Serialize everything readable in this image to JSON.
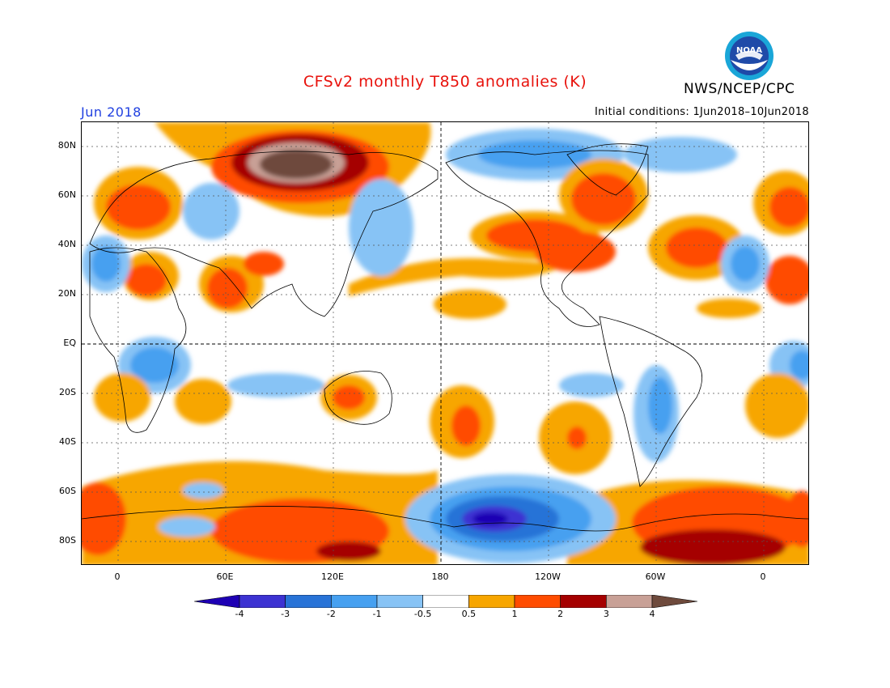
{
  "title": "CFSv2 monthly T850 anomalies (K)",
  "agency": "NWS/NCEP/CPC",
  "logo_text": "NOAA",
  "month": "Jun 2018",
  "initial_conditions": "Initial conditions: 1Jun2018–10Jun2018",
  "lat_labels": [
    "80N",
    "60N",
    "40N",
    "20N",
    "EQ",
    "20S",
    "40S",
    "60S",
    "80S"
  ],
  "lon_labels": [
    "0",
    "60E",
    "120E",
    "180",
    "120W",
    "60W",
    "0"
  ],
  "colorbar": {
    "labels": [
      "-4",
      "-3",
      "-2",
      "-1",
      "-0.5",
      "0.5",
      "1",
      "2",
      "3",
      "4"
    ],
    "colors": [
      "#1e00b4",
      "#3c32d2",
      "#2873d7",
      "#46a0f0",
      "#87c3f5",
      "#ffffff",
      "#f7a600",
      "#ff4c00",
      "#a50000",
      "#c8a096",
      "#6e4a3c"
    ]
  }
}
